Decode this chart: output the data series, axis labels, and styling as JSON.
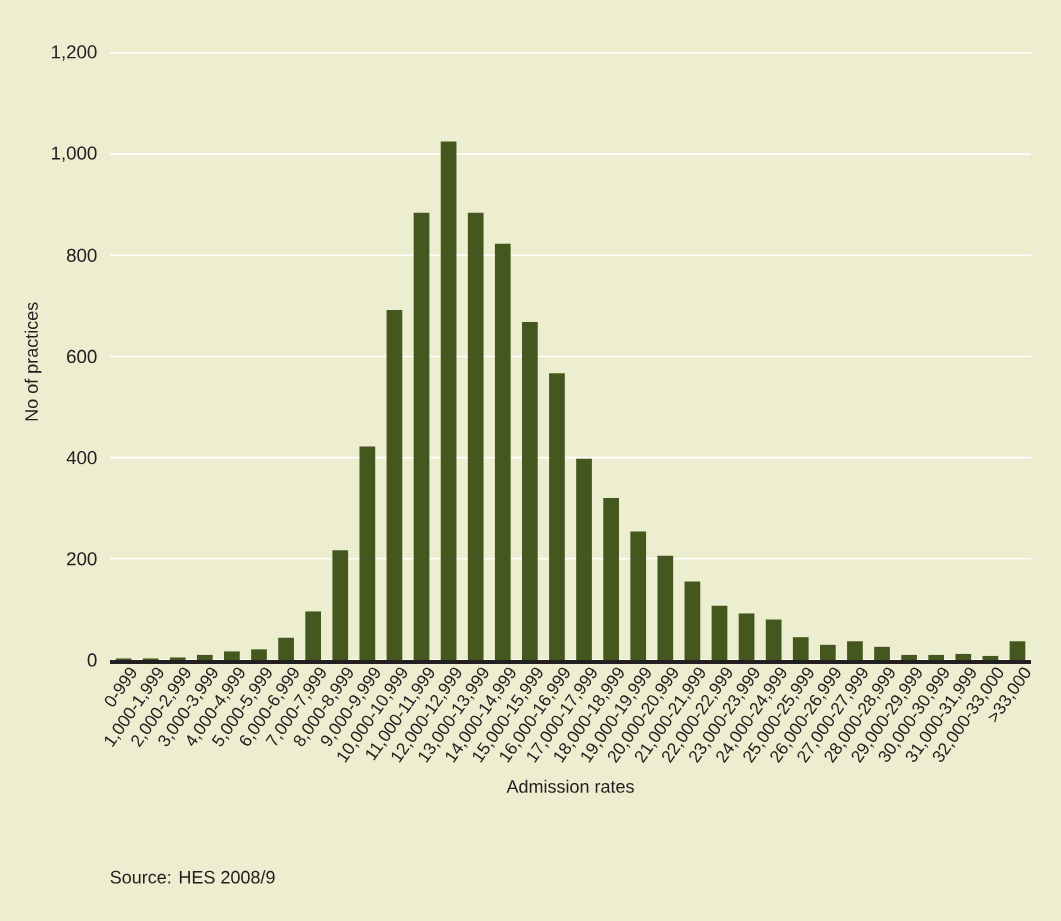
{
  "chart_data": {
    "type": "bar",
    "categories": [
      "0-999",
      "1,000-1,999",
      "2,000-2,999",
      "3,000-3,999",
      "4,000-4,999",
      "5,000-5,999",
      "6,000-6,999",
      "7,000-7,999",
      "8,000-8,999",
      "9,000-9,999",
      "10,000-10,999",
      "11,000-11,999",
      "12,000-12,999",
      "13,000-13,999",
      "14,000-14,999",
      "15,000-15,999",
      "16,000-16,999",
      "17,000-17,999",
      "18,000-18,999",
      "19,000-19,999",
      "20,000-20,999",
      "21,000-21,999",
      "22,000-22,999",
      "23,000-23,999",
      "24,000-24,999",
      "25,000-25,999",
      "26,000-26,999",
      "27,000-27,999",
      "28,000-28,999",
      "29,000-29,999",
      "30,000-30,999",
      "31,000-31,999",
      "32,000-33,000",
      ">33,000"
    ],
    "values": [
      3,
      3,
      5,
      10,
      17,
      21,
      44,
      96,
      217,
      422,
      692,
      884,
      1025,
      884,
      823,
      668,
      567,
      398,
      320,
      254,
      206,
      155,
      107,
      92,
      80,
      45,
      30,
      37,
      26,
      10,
      10,
      12,
      8,
      37
    ],
    "color": "#44571f",
    "xlabel": "Admission rates",
    "ylabel": "No of practices",
    "ylim": [
      0,
      1200
    ],
    "yticks": [
      0,
      {
        "value": 200,
        "label": "200"
      },
      {
        "value": 400,
        "label": "400"
      },
      {
        "value": 600,
        "label": "600"
      },
      {
        "value": 800,
        "label": "800"
      },
      {
        "value": 1000,
        "label": "1,000"
      },
      {
        "value": 1200,
        "label": "1,200"
      }
    ],
    "grid": "y",
    "annotations": [
      "Source: HES 2008/9"
    ]
  }
}
